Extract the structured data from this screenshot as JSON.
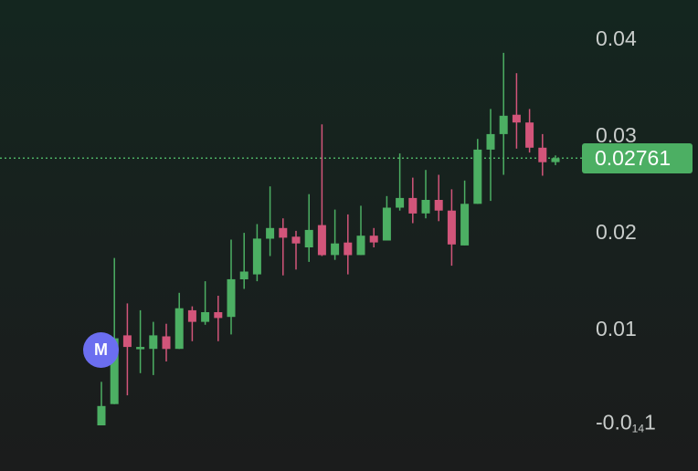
{
  "chart_data": {
    "type": "candlestick",
    "ylim": [
      -0.0035,
      0.0445
    ],
    "grid": false,
    "y_ticks": [
      {
        "value": 0.04,
        "label": "0.04"
      },
      {
        "value": 0.03,
        "label": "0.03"
      },
      {
        "value": 0.02,
        "label": "0.02"
      },
      {
        "value": 0.01,
        "label": "0.01"
      }
    ],
    "bottom_tick": {
      "value": -1e-14,
      "prefix": "-0.0",
      "subscript": "14",
      "suffix": "1"
    },
    "last_price": {
      "value": 0.02761,
      "label": "0.02761"
    },
    "marker": {
      "label": "M",
      "candle_index": 1
    },
    "up_color": "#4caf63",
    "down_color": "#d2557a",
    "candles": [
      {
        "o": 0.0,
        "h": 0.0045,
        "l": 0.0,
        "c": 0.002
      },
      {
        "o": 0.0022,
        "h": 0.0173,
        "l": 0.0022,
        "c": 0.009
      },
      {
        "o": 0.0093,
        "h": 0.0126,
        "l": 0.0031,
        "c": 0.0081
      },
      {
        "o": 0.0079,
        "h": 0.0119,
        "l": 0.0054,
        "c": 0.0081
      },
      {
        "o": 0.0079,
        "h": 0.0107,
        "l": 0.0052,
        "c": 0.0093
      },
      {
        "o": 0.0092,
        "h": 0.0105,
        "l": 0.0066,
        "c": 0.0079
      },
      {
        "o": 0.0079,
        "h": 0.0137,
        "l": 0.0079,
        "c": 0.0121
      },
      {
        "o": 0.0119,
        "h": 0.0123,
        "l": 0.0087,
        "c": 0.0107
      },
      {
        "o": 0.0107,
        "h": 0.0149,
        "l": 0.0104,
        "c": 0.0117
      },
      {
        "o": 0.0117,
        "h": 0.0134,
        "l": 0.0087,
        "c": 0.0111
      },
      {
        "o": 0.0112,
        "h": 0.0192,
        "l": 0.0094,
        "c": 0.0151
      },
      {
        "o": 0.0151,
        "h": 0.0199,
        "l": 0.0141,
        "c": 0.0159
      },
      {
        "o": 0.0156,
        "h": 0.0208,
        "l": 0.0149,
        "c": 0.0193
      },
      {
        "o": 0.0193,
        "h": 0.0247,
        "l": 0.0175,
        "c": 0.0204
      },
      {
        "o": 0.0204,
        "h": 0.0214,
        "l": 0.0155,
        "c": 0.0194
      },
      {
        "o": 0.0195,
        "h": 0.0201,
        "l": 0.0161,
        "c": 0.0188
      },
      {
        "o": 0.0184,
        "h": 0.0239,
        "l": 0.0169,
        "c": 0.0202
      },
      {
        "o": 0.0207,
        "h": 0.0311,
        "l": 0.0175,
        "c": 0.0176
      },
      {
        "o": 0.0176,
        "h": 0.0223,
        "l": 0.0171,
        "c": 0.0188
      },
      {
        "o": 0.0189,
        "h": 0.0218,
        "l": 0.0156,
        "c": 0.0176
      },
      {
        "o": 0.0176,
        "h": 0.0227,
        "l": 0.0176,
        "c": 0.0196
      },
      {
        "o": 0.0196,
        "h": 0.0204,
        "l": 0.0184,
        "c": 0.0189
      },
      {
        "o": 0.0191,
        "h": 0.0237,
        "l": 0.0191,
        "c": 0.0225
      },
      {
        "o": 0.0225,
        "h": 0.0281,
        "l": 0.0222,
        "c": 0.0235
      },
      {
        "o": 0.0235,
        "h": 0.0256,
        "l": 0.0209,
        "c": 0.0219
      },
      {
        "o": 0.0219,
        "h": 0.0264,
        "l": 0.0214,
        "c": 0.0233
      },
      {
        "o": 0.0233,
        "h": 0.0259,
        "l": 0.0211,
        "c": 0.0222
      },
      {
        "o": 0.0222,
        "h": 0.0244,
        "l": 0.0165,
        "c": 0.0187
      },
      {
        "o": 0.0186,
        "h": 0.0253,
        "l": 0.0186,
        "c": 0.0229
      },
      {
        "o": 0.0229,
        "h": 0.0296,
        "l": 0.0229,
        "c": 0.0285
      },
      {
        "o": 0.0285,
        "h": 0.0327,
        "l": 0.0232,
        "c": 0.0301
      },
      {
        "o": 0.0301,
        "h": 0.0385,
        "l": 0.0259,
        "c": 0.032
      },
      {
        "o": 0.0321,
        "h": 0.0364,
        "l": 0.0286,
        "c": 0.0313
      },
      {
        "o": 0.0313,
        "h": 0.0327,
        "l": 0.0282,
        "c": 0.0287
      },
      {
        "o": 0.0287,
        "h": 0.0301,
        "l": 0.0258,
        "c": 0.0272
      },
      {
        "o": 0.0272,
        "h": 0.0279,
        "l": 0.0269,
        "c": 0.02761
      }
    ]
  }
}
